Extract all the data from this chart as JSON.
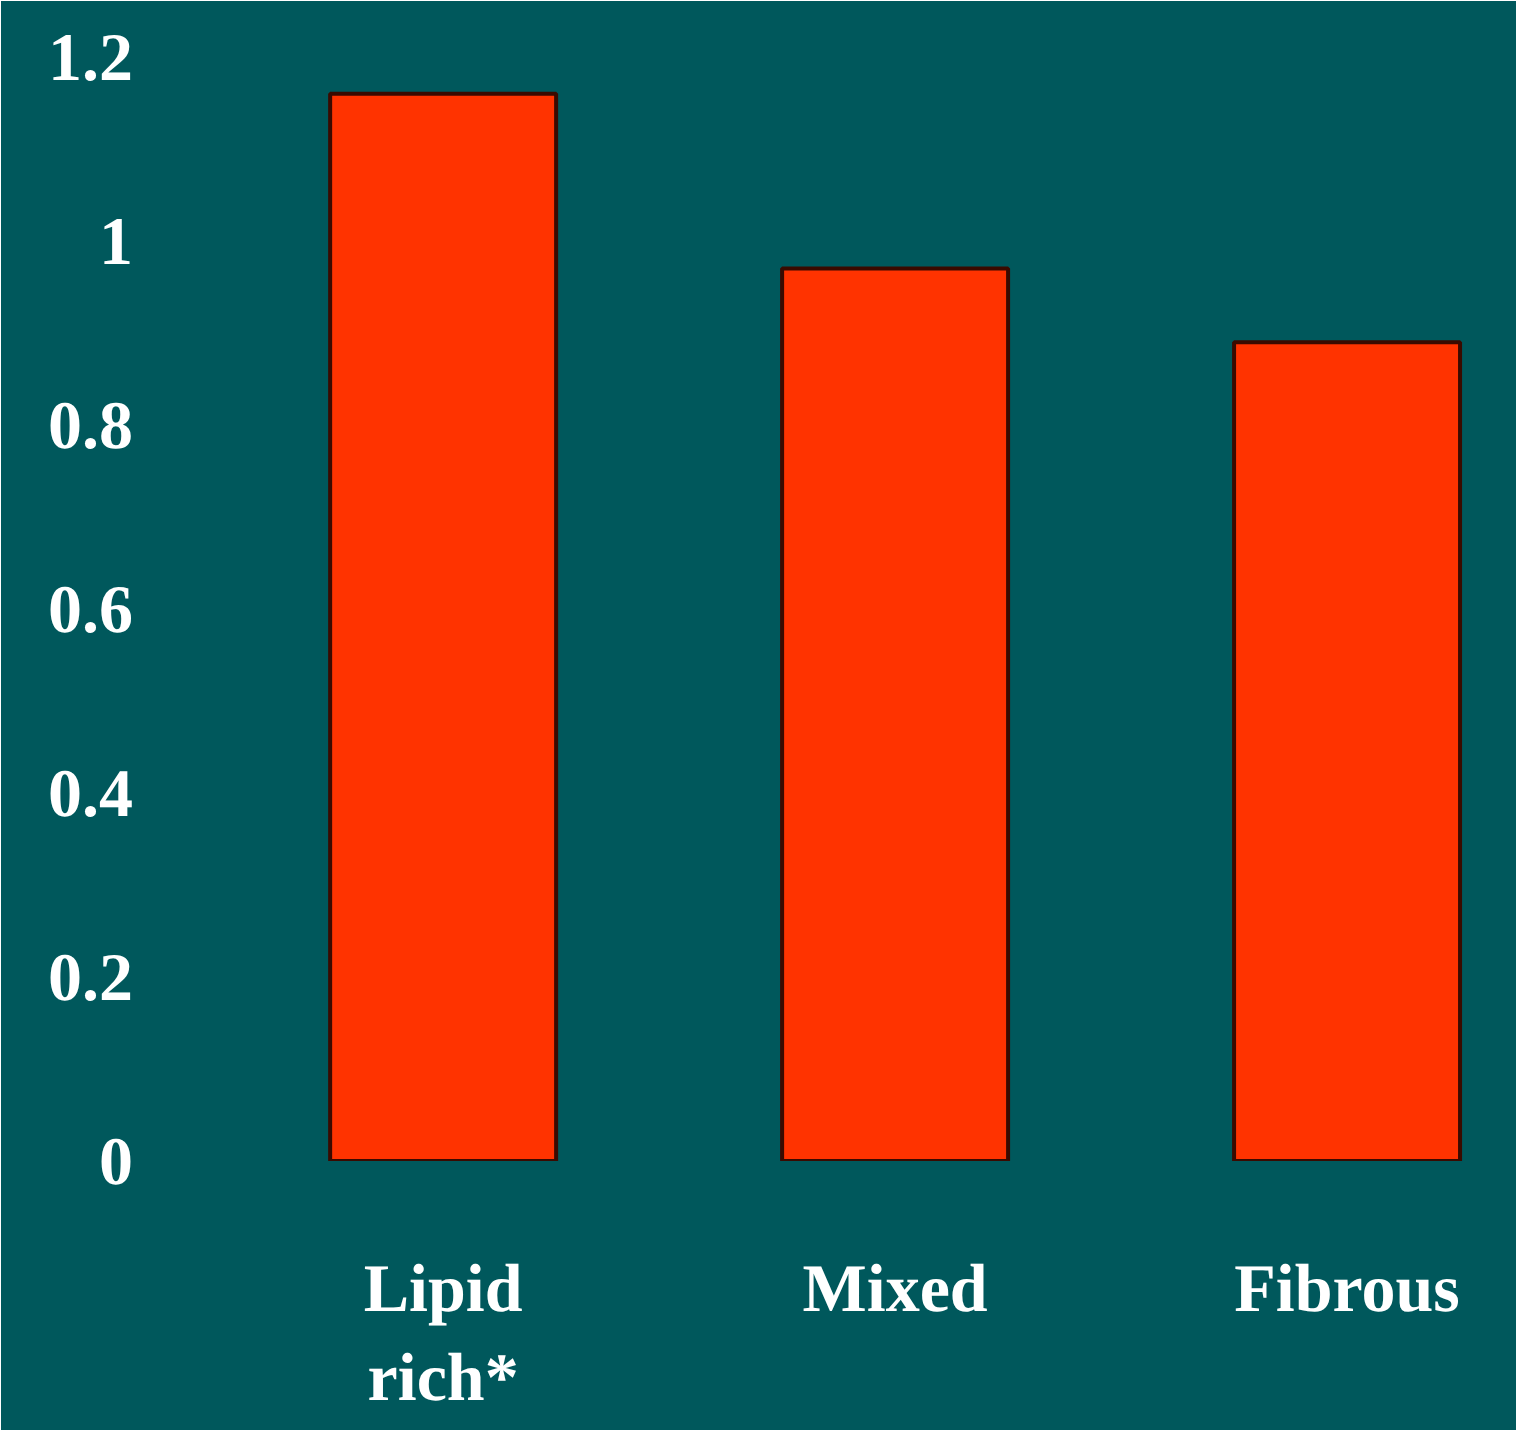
{
  "chart_data": {
    "type": "bar",
    "categories": [
      "Lipid\nrich*",
      "Mixed",
      "Fibrous"
    ],
    "values": [
      1.16,
      0.97,
      0.89
    ],
    "color": "#ff3300",
    "ylim": [
      0,
      1.2
    ],
    "yticks": [
      0,
      0.2,
      0.4,
      0.6,
      0.8,
      1,
      1.2
    ],
    "grid": false
  }
}
